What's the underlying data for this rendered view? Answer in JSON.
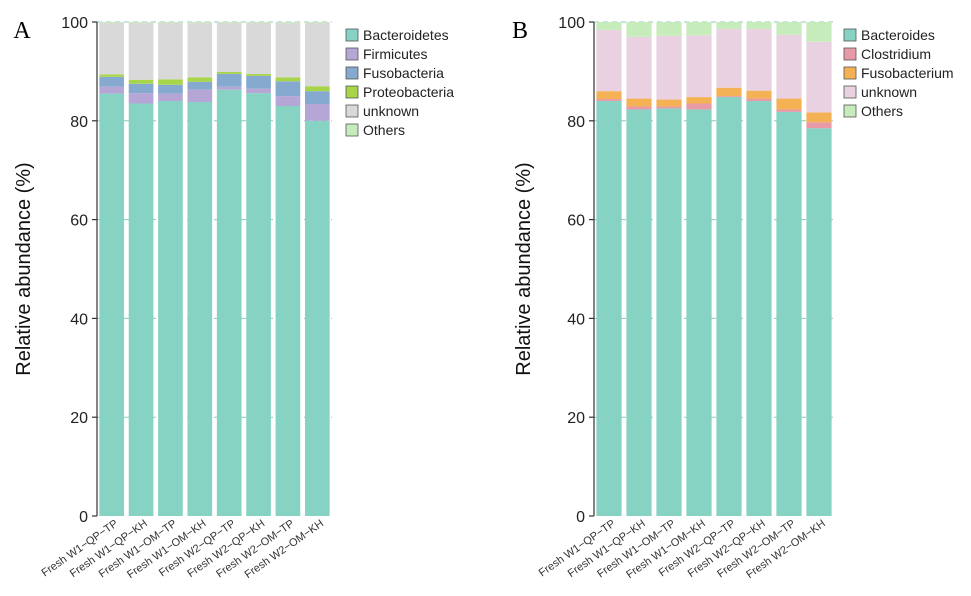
{
  "chart_data": [
    {
      "panel_label": "A",
      "type": "bar",
      "stacked": true,
      "title": "",
      "xlabel": "",
      "ylabel": "Relative abundance (%)",
      "ylim": [
        0,
        100
      ],
      "yticks": [
        0,
        20,
        40,
        60,
        80,
        100
      ],
      "grid": "horizontal dashed",
      "legend_position": "right",
      "categories": [
        "Fresh W1−QP−TP",
        "Fresh W1−QP−KH",
        "Fresh W1−OM−TP",
        "Fresh W1−OM−KH",
        "Fresh W2−QP−TP",
        "Fresh W2−QP−KH",
        "Fresh W2−OM−TP",
        "Fresh W2−OM−KH"
      ],
      "series": [
        {
          "name": "Bacteroidetes",
          "color": "#86d3c4",
          "values": [
            85.5,
            83.5,
            84.0,
            83.8,
            86.3,
            85.6,
            83.0,
            80.0
          ]
        },
        {
          "name": "Firmicutes",
          "color": "#b5a6d6",
          "values": [
            1.4,
            2.1,
            1.5,
            2.5,
            0.6,
            0.9,
            2.0,
            3.4
          ]
        },
        {
          "name": "Fusobacteria",
          "color": "#86a9d0",
          "values": [
            2.0,
            1.9,
            1.8,
            1.6,
            2.6,
            2.6,
            3.0,
            2.6
          ]
        },
        {
          "name": "Proteobacteria",
          "color": "#a8d44a",
          "values": [
            0.5,
            0.8,
            1.1,
            0.9,
            0.4,
            0.4,
            0.8,
            1.0
          ]
        },
        {
          "name": "unknown",
          "color": "#d9d9d9",
          "values": [
            10.4,
            11.5,
            11.4,
            11.0,
            9.9,
            10.3,
            11.0,
            12.8
          ]
        },
        {
          "name": "Others",
          "color": "#c7ecbc",
          "values": [
            0.2,
            0.2,
            0.2,
            0.2,
            0.2,
            0.2,
            0.2,
            0.2
          ]
        }
      ]
    },
    {
      "panel_label": "B",
      "type": "bar",
      "stacked": true,
      "title": "",
      "xlabel": "",
      "ylabel": "Relative abundance (%)",
      "ylim": [
        0,
        100
      ],
      "yticks": [
        0,
        20,
        40,
        60,
        80,
        100
      ],
      "grid": "horizontal dashed",
      "legend_position": "right",
      "categories": [
        "Fresh W1−QP−TP",
        "Fresh W1−QP−KH",
        "Fresh W1−OM−TP",
        "Fresh W1−OM−KH",
        "Fresh W2−QP−TP",
        "Fresh W2−QP−KH",
        "Fresh W2−OM−TP",
        "Fresh W2−OM−KH"
      ],
      "series": [
        {
          "name": "Bacteroides",
          "color": "#86d3c4",
          "values": [
            84.0,
            82.3,
            82.5,
            82.3,
            84.8,
            84.0,
            81.8,
            78.5
          ]
        },
        {
          "name": "Clostridium",
          "color": "#e89aa6",
          "values": [
            0.4,
            0.6,
            0.4,
            1.2,
            0.2,
            0.5,
            0.5,
            1.2
          ]
        },
        {
          "name": "Fusobacterium",
          "color": "#f5b255",
          "values": [
            1.6,
            1.6,
            1.4,
            1.3,
            1.7,
            1.6,
            2.2,
            2.0
          ]
        },
        {
          "name": "unknown",
          "color": "#ead1e2",
          "values": [
            12.4,
            12.5,
            12.9,
            12.5,
            11.9,
            12.5,
            12.9,
            14.3
          ]
        },
        {
          "name": "Others",
          "color": "#c7ecbc",
          "values": [
            1.6,
            3.0,
            2.8,
            2.7,
            1.4,
            1.4,
            2.6,
            4.0
          ]
        }
      ]
    }
  ]
}
